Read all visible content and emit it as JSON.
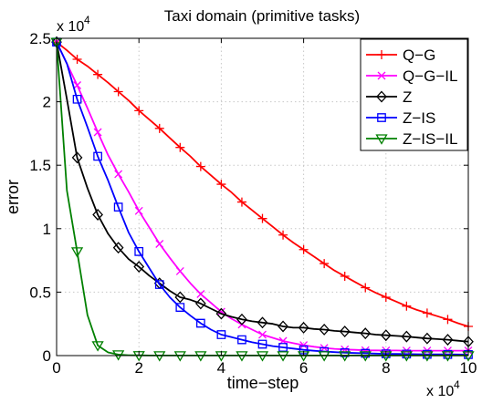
{
  "chart_data": {
    "type": "line",
    "title": "Taxi domain (primitive tasks)",
    "xlabel": "time−step",
    "ylabel": "error",
    "x_multiplier": "x 10",
    "y_multiplier": "x 10",
    "multiplier_exponent": "4",
    "xlim": [
      0,
      100000
    ],
    "ylim": [
      0,
      25000
    ],
    "x_ticks": [
      0,
      20000,
      40000,
      60000,
      80000,
      100000
    ],
    "x_tick_labels": [
      "0",
      "2",
      "4",
      "6",
      "8",
      "10"
    ],
    "y_ticks": [
      0,
      5000,
      10000,
      15000,
      20000,
      25000
    ],
    "y_tick_labels": [
      "0",
      "0.5",
      "1",
      "1.5",
      "2",
      "2.5"
    ],
    "grid": true,
    "legend_position": "top-right",
    "series": [
      {
        "name": "Q−G",
        "color": "#ff0000",
        "marker": "plus",
        "marker_every": 2,
        "x": [
          0,
          2500,
          5000,
          7500,
          10000,
          12500,
          15000,
          17500,
          20000,
          22500,
          25000,
          27500,
          30000,
          32500,
          35000,
          37500,
          40000,
          42500,
          45000,
          47500,
          50000,
          52500,
          55000,
          57500,
          60000,
          62500,
          65000,
          67500,
          70000,
          72500,
          75000,
          77500,
          80000,
          82500,
          85000,
          87500,
          90000,
          92500,
          95000,
          97500,
          100000
        ],
        "y": [
          24700,
          24050,
          23350,
          22800,
          22150,
          21500,
          20800,
          20100,
          19300,
          18600,
          17900,
          17150,
          16400,
          15700,
          14900,
          14200,
          13500,
          12850,
          12100,
          11450,
          10800,
          10150,
          9500,
          8900,
          8350,
          7800,
          7250,
          6700,
          6250,
          5800,
          5350,
          4950,
          4600,
          4250,
          3900,
          3600,
          3350,
          3100,
          2850,
          2550,
          2300
        ]
      },
      {
        "name": "Q−G−IL",
        "color": "#ff00ff",
        "marker": "x",
        "marker_every": 2,
        "x": [
          0,
          2500,
          5000,
          7500,
          10000,
          12500,
          15000,
          17500,
          20000,
          22500,
          25000,
          27500,
          30000,
          32500,
          35000,
          37500,
          40000,
          42500,
          45000,
          47500,
          50000,
          52500,
          55000,
          57500,
          60000,
          62500,
          65000,
          67500,
          70000,
          72500,
          75000,
          77500,
          80000,
          82500,
          85000,
          87500,
          90000,
          92500,
          95000,
          97500,
          100000
        ],
        "y": [
          24700,
          23000,
          21300,
          19500,
          17600,
          15800,
          14300,
          12900,
          11400,
          10100,
          8800,
          7700,
          6650,
          5700,
          4850,
          4150,
          3450,
          2900,
          2450,
          2050,
          1650,
          1400,
          1150,
          980,
          820,
          700,
          600,
          530,
          480,
          450,
          420,
          410,
          400,
          400,
          390,
          390,
          390,
          390,
          390,
          390,
          390
        ]
      },
      {
        "name": "Z",
        "color": "#000000",
        "marker": "diamond",
        "marker_every": 2,
        "x": [
          0,
          2500,
          5000,
          7500,
          10000,
          12500,
          15000,
          17500,
          20000,
          22500,
          25000,
          27500,
          30000,
          32500,
          35000,
          37500,
          40000,
          42500,
          45000,
          47500,
          50000,
          52500,
          55000,
          57500,
          60000,
          62500,
          65000,
          67500,
          70000,
          72500,
          75000,
          77500,
          80000,
          82500,
          85000,
          87500,
          90000,
          92500,
          95000,
          97500,
          100000
        ],
        "y": [
          24700,
          20200,
          15600,
          13200,
          11100,
          9600,
          8500,
          7600,
          7000,
          6300,
          5700,
          5100,
          4600,
          4400,
          4100,
          3700,
          3300,
          3050,
          2850,
          2700,
          2600,
          2500,
          2300,
          2200,
          2200,
          2100,
          2050,
          1950,
          1900,
          1820,
          1750,
          1650,
          1600,
          1550,
          1500,
          1420,
          1350,
          1300,
          1250,
          1170,
          1100
        ]
      },
      {
        "name": "Z−IS",
        "color": "#0000ff",
        "marker": "square",
        "marker_every": 2,
        "x": [
          0,
          2500,
          5000,
          7500,
          10000,
          12500,
          15000,
          17500,
          20000,
          22500,
          25000,
          27500,
          30000,
          32500,
          35000,
          37500,
          40000,
          42500,
          45000,
          47500,
          50000,
          52500,
          55000,
          57500,
          60000,
          62500,
          65000,
          67500,
          70000,
          72500,
          75000,
          77500,
          80000,
          82500,
          85000,
          87500,
          90000,
          92500,
          95000,
          97500,
          100000
        ],
        "y": [
          24700,
          23000,
          20200,
          18000,
          15700,
          13800,
          11700,
          9700,
          8200,
          6900,
          5600,
          4600,
          3800,
          3150,
          2550,
          2050,
          1650,
          1450,
          1250,
          1050,
          900,
          750,
          650,
          550,
          450,
          380,
          320,
          270,
          230,
          200,
          180,
          160,
          140,
          130,
          120,
          110,
          100,
          95,
          90,
          85,
          80
        ]
      },
      {
        "name": "Z−IS−IL",
        "color": "#008000",
        "marker": "triangle-down",
        "marker_every": 2,
        "x": [
          0,
          2500,
          5000,
          7500,
          10000,
          12500,
          15000,
          17500,
          20000,
          22500,
          25000,
          27500,
          30000,
          32500,
          35000,
          37500,
          40000,
          42500,
          45000,
          47500,
          50000,
          52500,
          55000,
          57500,
          60000,
          62500,
          65000,
          67500,
          70000,
          72500,
          75000,
          77500,
          80000,
          82500,
          85000,
          87500,
          90000,
          92500,
          95000,
          97500,
          100000
        ],
        "y": [
          24700,
          13000,
          8200,
          3200,
          800,
          250,
          80,
          30,
          20,
          10,
          10,
          10,
          10,
          10,
          10,
          10,
          10,
          10,
          10,
          10,
          10,
          10,
          10,
          10,
          10,
          10,
          10,
          10,
          10,
          10,
          10,
          10,
          10,
          10,
          10,
          10,
          10,
          10,
          10,
          10,
          10
        ]
      }
    ]
  }
}
